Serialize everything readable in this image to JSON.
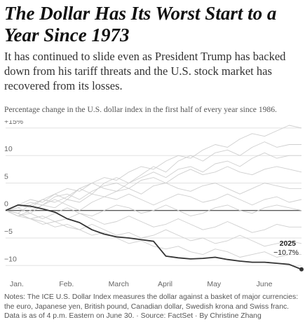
{
  "chart_data": {
    "type": "line",
    "title": "The Dollar Has Its Worst Start to a Year Since 1973",
    "subtitle": "It has continued to slide even as President Trump has backed down from his tariff threats and the U.S. stock market has recovered from its losses.",
    "caption": "Percentage change in the U.S. dollar index in the first half of every year since 1986.",
    "notes": "Notes: The ICE U.S. Dollar Index measures the dollar against a basket of major currencies: the euro, Japanese yen, British pound, Canadian dollar, Swedish krona and Swiss franc. Data is as of 4 p.m. Eastern on June 30. · Source: FactSet · By Christine Zhang",
    "x": [
      0,
      0.25,
      0.5,
      0.75,
      1,
      1.25,
      1.5,
      1.75,
      2,
      2.25,
      2.5,
      2.75,
      3,
      3.25,
      3.5,
      3.75,
      4,
      4.25,
      4.5,
      4.75,
      5,
      5.25,
      5.5,
      5.75,
      6
    ],
    "xlim": [
      0,
      6
    ],
    "xticks": [
      {
        "value": 0,
        "label": "Jan."
      },
      {
        "value": 1,
        "label": "Feb."
      },
      {
        "value": 2,
        "label": "March"
      },
      {
        "value": 3,
        "label": "April"
      },
      {
        "value": 4,
        "label": "May"
      },
      {
        "value": 5,
        "label": "June"
      }
    ],
    "ylim": [
      -12,
      15.5
    ],
    "yticks": [
      {
        "value": 15,
        "label": "+15%"
      },
      10,
      5,
      0,
      {
        "value": -5,
        "label": "−5"
      },
      {
        "value": -10,
        "label": "−10"
      }
    ],
    "grid": true,
    "series": [
      {
        "color": "#cfcfcf",
        "values": [
          0,
          1,
          2,
          1.5,
          3,
          4,
          3.5,
          5,
          6,
          5.5,
          7,
          8,
          7.5,
          9,
          10,
          9.5,
          11,
          12,
          11.5,
          13,
          14,
          13.5,
          14.5,
          15.5,
          15
        ]
      },
      {
        "color": "#cfcfcf",
        "values": [
          0,
          -0.5,
          1,
          2,
          1.5,
          2.5,
          4,
          3,
          5,
          6,
          5,
          6.5,
          8,
          7,
          9,
          10,
          9,
          10.5,
          11,
          10,
          11.5,
          12.5,
          11.5,
          12,
          12
        ]
      },
      {
        "color": "#cfcfcf",
        "values": [
          0,
          1,
          0.5,
          2,
          3,
          2,
          4,
          5,
          4,
          3.5,
          5,
          6,
          7,
          6,
          7.5,
          8,
          7,
          8.5,
          9,
          8,
          9.5,
          10.5,
          9.5,
          10,
          10
        ]
      },
      {
        "color": "#cfcfcf",
        "values": [
          0,
          0.5,
          1.5,
          1,
          2.5,
          3,
          2,
          3.5,
          4.5,
          5,
          4,
          5.5,
          6,
          5,
          6.5,
          7.5,
          6.5,
          7,
          8,
          7,
          6.5,
          7.5,
          8,
          7.5,
          7
        ]
      },
      {
        "color": "#cfcfcf",
        "values": [
          0,
          -1,
          0,
          1,
          0.5,
          2,
          1.5,
          3,
          2.5,
          3.5,
          4,
          3,
          4.5,
          5,
          4,
          3.5,
          4.5,
          5,
          4,
          3,
          4,
          5,
          4.5,
          4,
          4
        ]
      },
      {
        "color": "#cfcfcf",
        "values": [
          0,
          0.5,
          -0.5,
          1,
          2,
          1,
          0,
          1.5,
          2.5,
          2,
          3,
          2,
          1,
          2,
          3,
          2.5,
          1.5,
          2,
          3,
          2,
          1,
          2,
          2.5,
          1.5,
          2
        ]
      },
      {
        "color": "#cfcfcf",
        "values": [
          0,
          -1,
          -0.5,
          -1.5,
          -0.5,
          0.5,
          -0.5,
          -1,
          0,
          1,
          0.5,
          -0.5,
          0,
          1,
          0,
          -1,
          -0.5,
          0.5,
          1,
          0,
          -0.5,
          0.5,
          1,
          0.5,
          0
        ]
      },
      {
        "color": "#cfcfcf",
        "values": [
          0,
          -0.5,
          -1.5,
          -1,
          -2,
          -1.5,
          -0.5,
          -1.5,
          -2.5,
          -2,
          -1,
          -2,
          -3,
          -2.5,
          -1.5,
          -2.5,
          -3.5,
          -3,
          -2,
          -3,
          -4,
          -3.5,
          -2.5,
          -3,
          -3
        ]
      },
      {
        "color": "#cfcfcf",
        "values": [
          0,
          -1,
          -1.5,
          -2.5,
          -2,
          -3,
          -3.5,
          -2.5,
          -3.5,
          -4.5,
          -4,
          -5,
          -4.5,
          -3.5,
          -4.5,
          -5.5,
          -5,
          -6,
          -5.5,
          -4.5,
          -5.5,
          -6.5,
          -6,
          -5.5,
          -6
        ]
      },
      {
        "color": "#cfcfcf",
        "values": [
          0,
          -0.5,
          -1.5,
          -2,
          -3,
          -2.5,
          -3.5,
          -4.5,
          -4,
          -5,
          -6,
          -5.5,
          -6.5,
          -7,
          -6.5,
          -7.5,
          -8,
          -7,
          -7.5,
          -8.5,
          -8,
          -7.5,
          -8.5,
          -8,
          -8
        ]
      },
      {
        "name": "2025",
        "color": "#333333",
        "highlight": true,
        "values": [
          0,
          1.0,
          0.8,
          0.3,
          -0.3,
          -1.5,
          -2.2,
          -3.5,
          -4.3,
          -4.8,
          -5.0,
          -5.3,
          -5.6,
          -8.3,
          -8.6,
          -8.8,
          -8.7,
          -8.5,
          -8.9,
          -9.2,
          -9.4,
          -9.4,
          -9.6,
          -9.8,
          -10.7
        ],
        "value_labels": [
          null,
          null,
          null,
          null,
          null,
          null,
          null,
          null,
          null,
          null,
          null,
          null,
          null,
          null,
          null,
          null,
          null,
          null,
          null,
          null,
          null,
          null,
          null,
          null,
          "−10.7%"
        ]
      }
    ]
  }
}
